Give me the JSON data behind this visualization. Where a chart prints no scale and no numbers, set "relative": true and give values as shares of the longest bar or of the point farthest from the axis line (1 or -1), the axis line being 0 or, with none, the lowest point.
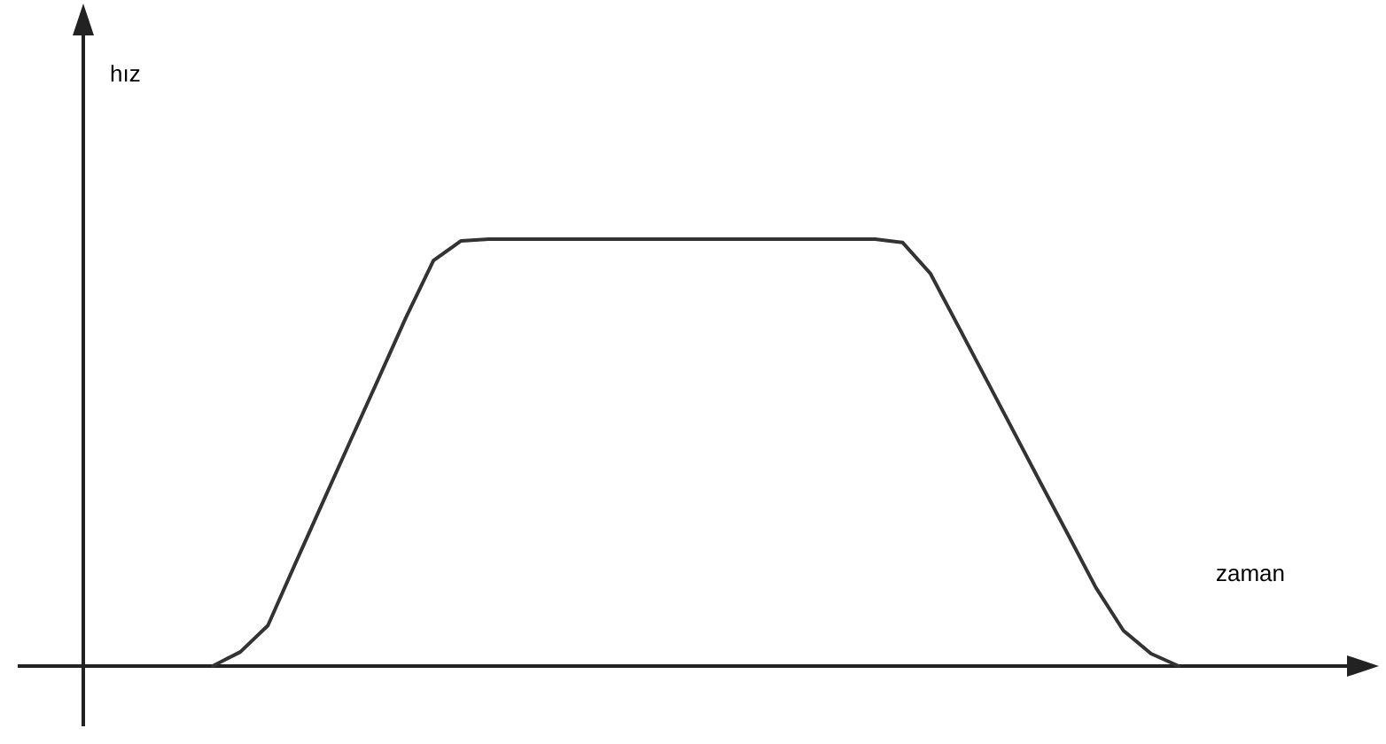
{
  "chart_data": {
    "type": "line",
    "relative": true,
    "annotations": [
      "hız",
      "zaman"
    ],
    "categories": [
      null,
      null,
      null,
      null,
      null,
      null,
      null,
      null,
      null,
      null,
      null,
      null,
      null,
      null,
      null,
      null,
      null,
      null,
      null,
      null,
      null,
      null,
      null,
      null,
      null,
      null,
      null,
      null,
      null,
      null,
      null,
      null,
      null,
      null,
      null,
      null
    ],
    "series": [
      {
        "color": "#333333",
        "values": [
          0,
          0.033,
          0.095,
          0.241,
          0.385,
          0.529,
          0.672,
          0.816,
          0.95,
          0.996,
          1,
          1,
          1,
          1,
          1,
          1,
          1,
          1,
          1,
          1,
          1,
          1,
          1,
          1,
          1,
          0.992,
          0.92,
          0.798,
          0.675,
          0.552,
          0.429,
          0.307,
          0.184,
          0.083,
          0.029,
          0
        ]
      }
    ],
    "grid": false,
    "marker": "none",
    "line_style": "solid"
  }
}
